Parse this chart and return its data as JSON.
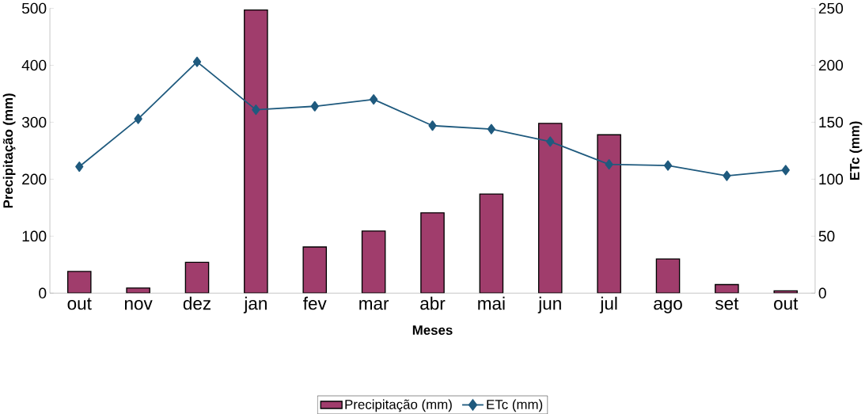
{
  "chart_data": {
    "type": "bar",
    "xlabel": "Meses",
    "ylabel": "Precipitação (mm)",
    "y2label": "ETc (mm)",
    "categories": [
      "out",
      "nov",
      "dez",
      "jan",
      "fev",
      "mar",
      "abr",
      "mai",
      "jun",
      "jul",
      "ago",
      "set",
      "out"
    ],
    "series": [
      {
        "name": "Precipitação (mm)",
        "color": "#a03d6c",
        "values": [
          38,
          9,
          54,
          497,
          81,
          109,
          141,
          174,
          298,
          278,
          60,
          15,
          4
        ]
      },
      {
        "name": "ETc (mm)",
        "type": "line",
        "axis": "y2",
        "color": "#1f5a7e",
        "marker": "diamond",
        "values": [
          111,
          153,
          203,
          161,
          164,
          170,
          147,
          144,
          133,
          113,
          112,
          103,
          108
        ]
      }
    ],
    "ylim": [
      0,
      500
    ],
    "yticks": [
      0,
      100,
      200,
      300,
      400,
      500
    ],
    "y2lim": [
      0,
      250
    ],
    "y2ticks": [
      0,
      50,
      100,
      150,
      200,
      250
    ],
    "legend": "bottom"
  }
}
